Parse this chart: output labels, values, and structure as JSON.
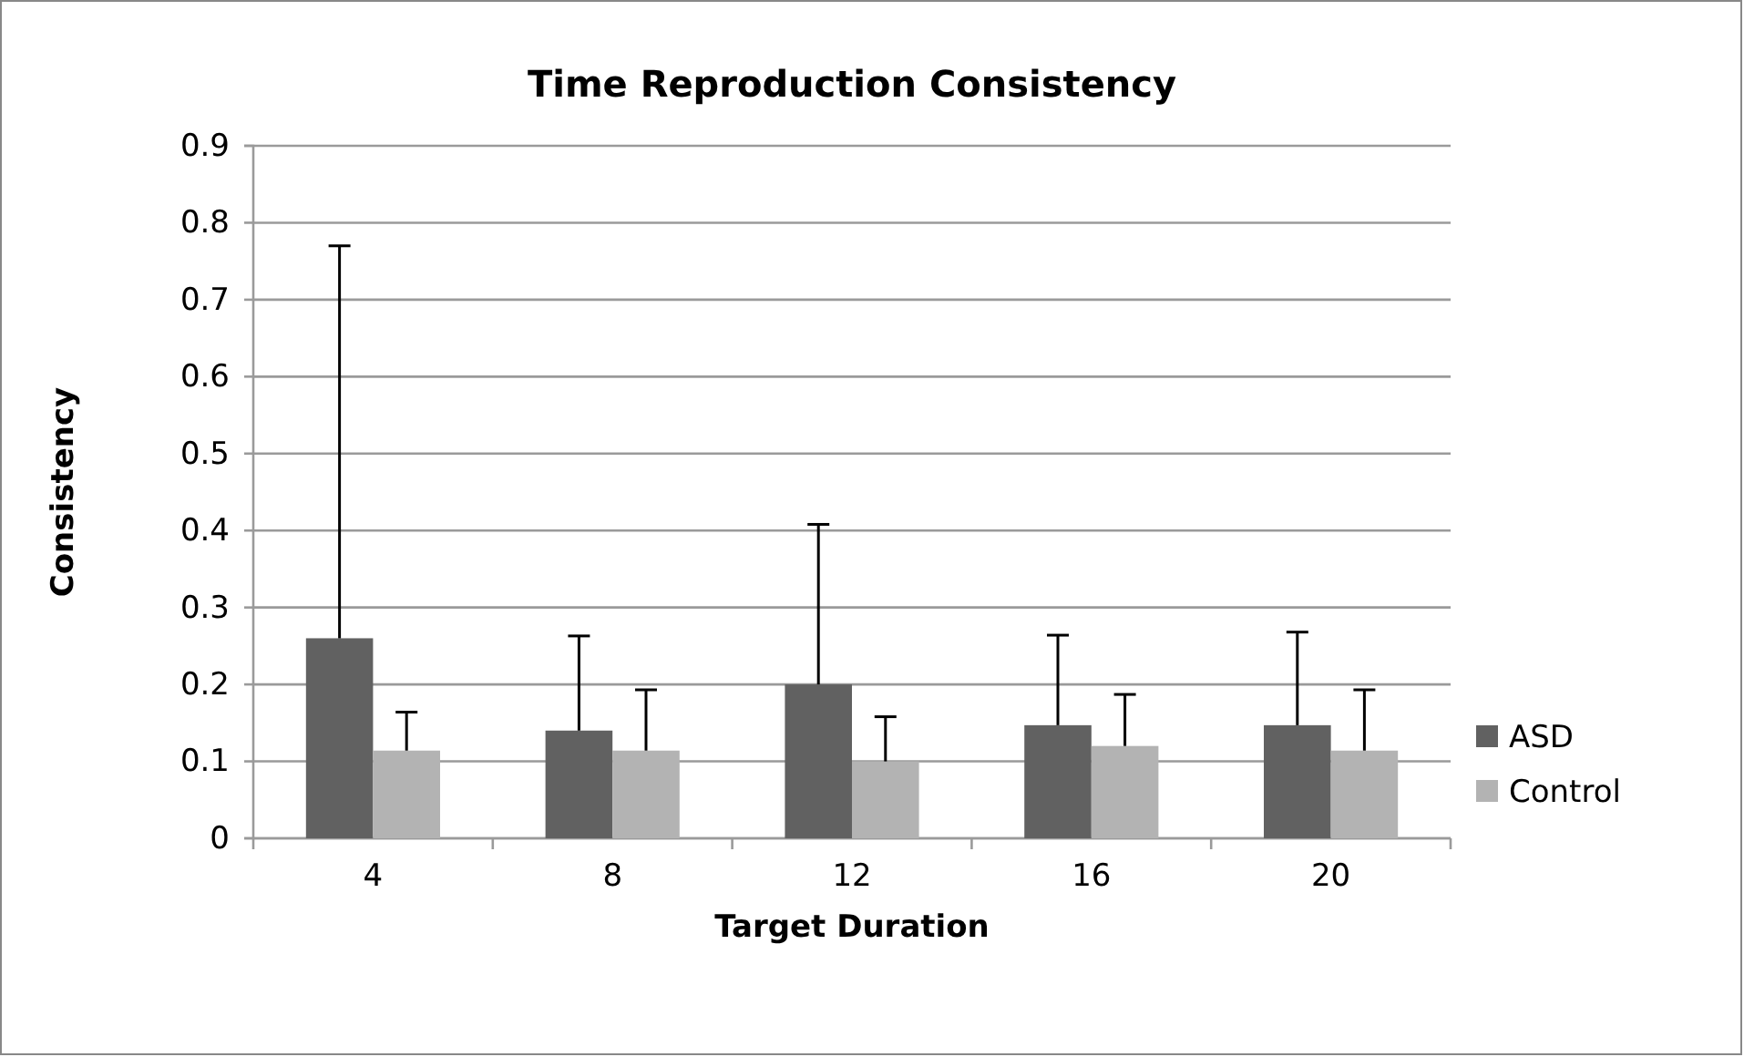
{
  "chart_data": {
    "type": "bar",
    "title": "Time Reproduction Consistency",
    "xlabel": "Target Duration",
    "ylabel": "Consistency",
    "categories": [
      "4",
      "8",
      "12",
      "16",
      "20"
    ],
    "series": [
      {
        "name": "ASD",
        "color": "#616161",
        "values": [
          0.26,
          0.14,
          0.2,
          0.147,
          0.147
        ],
        "errors": [
          [
            0.26,
            0.77
          ],
          [
            0.14,
            0.263
          ],
          [
            0.2,
            0.408
          ],
          [
            0.147,
            0.264
          ],
          [
            0.147,
            0.268
          ]
        ]
      },
      {
        "name": "Control",
        "color": "#b3b3b3",
        "values": [
          0.114,
          0.114,
          0.1,
          0.12,
          0.114
        ],
        "errors": [
          [
            0.114,
            0.164
          ],
          [
            0.114,
            0.193
          ],
          [
            0.1,
            0.158
          ],
          [
            0.12,
            0.187
          ],
          [
            0.114,
            0.193
          ]
        ]
      }
    ],
    "ylim": [
      0,
      0.9
    ],
    "yticks": [
      0,
      0.1,
      0.2,
      0.3,
      0.4,
      0.5,
      0.6,
      0.7,
      0.8,
      0.9
    ],
    "grid": "y",
    "legend": "right"
  }
}
